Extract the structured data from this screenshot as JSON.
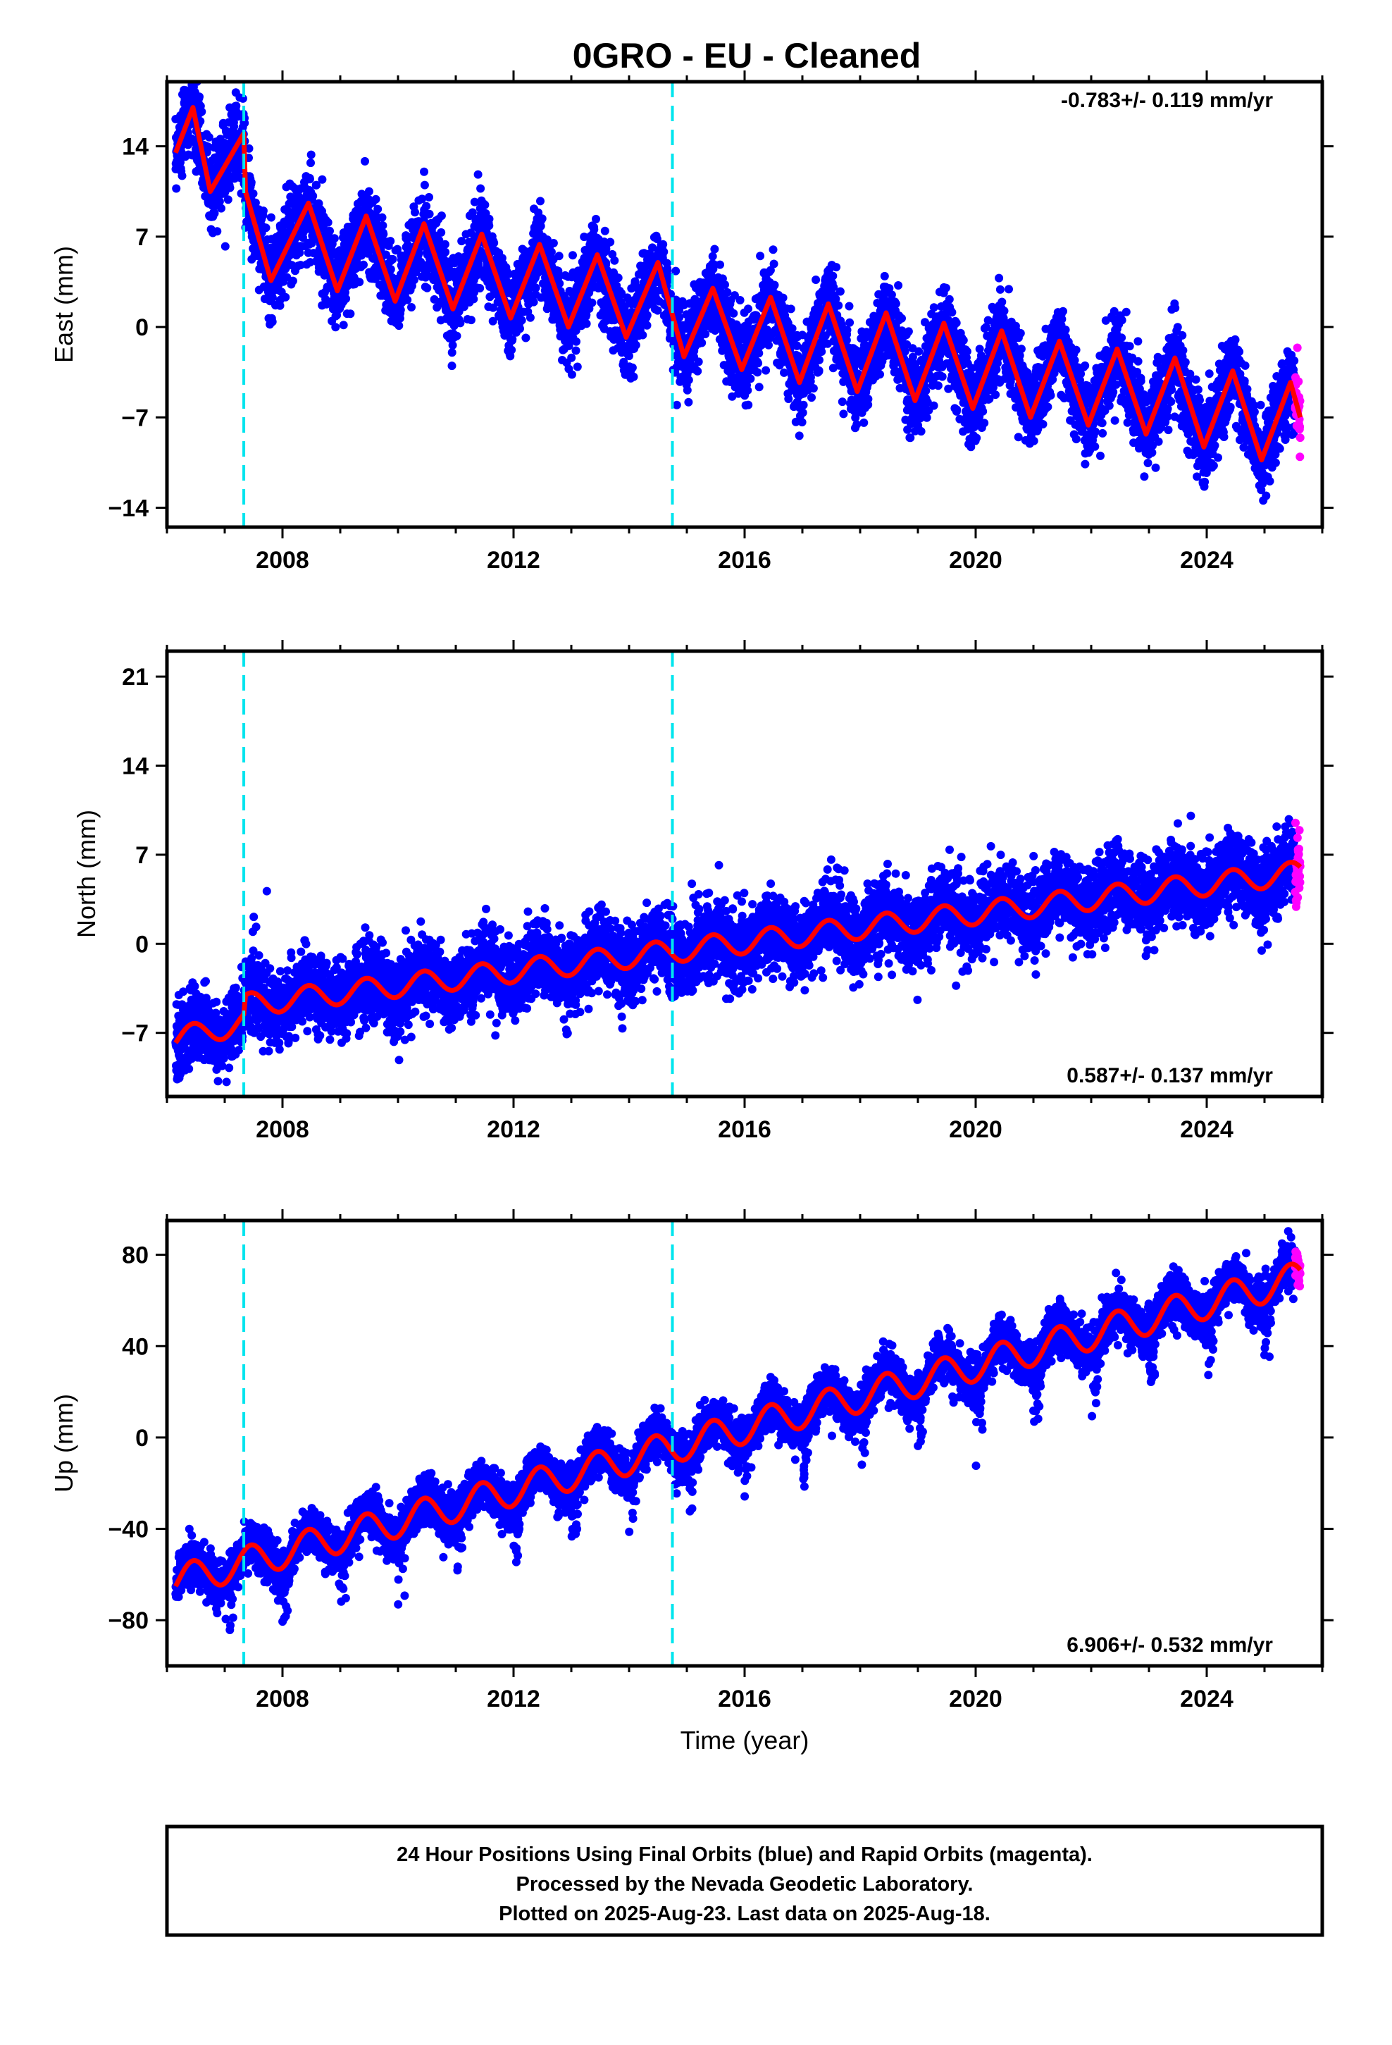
{
  "chart_data": {
    "title": "0GRO  - EU - Cleaned",
    "type": "scatter",
    "xlabel": "Time (year)",
    "xlim": [
      2006.0,
      2026.0
    ],
    "xticks": [
      2008,
      2012,
      2016,
      2020,
      2024
    ],
    "equipment_changes": [
      2007.33,
      2014.75
    ],
    "colors": {
      "final_orbits": "#0000ff",
      "rapid_orbits": "#ff00ff",
      "model_fit": "#ff0000",
      "offset_lines": "#00e5ee"
    },
    "data_start": 2006.15,
    "last_data": 2025.62,
    "rapid_start": 2025.53,
    "panels": [
      {
        "ylabel": "East (mm)",
        "ylim": [
          -15.5,
          19.0
        ],
        "yticks": [
          14,
          7,
          0,
          -7,
          -14
        ],
        "rate_label": "-0.783+/- 0.119 mm/yr",
        "rate_position": "top-right",
        "rate": -0.783,
        "rate_sigma": 0.119,
        "seasonal_amplitude": 3.2,
        "scatter_sigma": 1.6,
        "fit_nodes": [
          [
            2006.15,
            13.5
          ],
          [
            2006.45,
            17.0
          ],
          [
            2006.75,
            10.5
          ],
          [
            2007.33,
            15.0
          ],
          [
            2007.36,
            10.5
          ],
          [
            2007.8,
            3.6
          ],
          [
            2008.45,
            9.6
          ],
          [
            2008.95,
            2.8
          ],
          [
            2009.45,
            8.6
          ],
          [
            2009.95,
            2.0
          ],
          [
            2010.45,
            8.0
          ],
          [
            2010.95,
            1.4
          ],
          [
            2011.45,
            7.2
          ],
          [
            2011.95,
            0.7
          ],
          [
            2012.45,
            6.4
          ],
          [
            2012.95,
            0.0
          ],
          [
            2013.45,
            5.6
          ],
          [
            2013.95,
            -0.8
          ],
          [
            2014.5,
            5.0
          ],
          [
            2014.95,
            -2.3
          ],
          [
            2015.45,
            3.0
          ],
          [
            2015.95,
            -3.3
          ],
          [
            2016.45,
            2.3
          ],
          [
            2016.95,
            -4.3
          ],
          [
            2017.45,
            1.8
          ],
          [
            2017.95,
            -5.0
          ],
          [
            2018.45,
            1.1
          ],
          [
            2018.95,
            -5.7
          ],
          [
            2019.45,
            0.3
          ],
          [
            2019.95,
            -6.3
          ],
          [
            2020.45,
            -0.3
          ],
          [
            2020.95,
            -7.0
          ],
          [
            2021.45,
            -1.1
          ],
          [
            2021.95,
            -7.6
          ],
          [
            2022.45,
            -1.7
          ],
          [
            2022.95,
            -8.3
          ],
          [
            2023.45,
            -2.4
          ],
          [
            2023.95,
            -9.3
          ],
          [
            2024.45,
            -3.4
          ],
          [
            2024.95,
            -10.3
          ],
          [
            2025.45,
            -4.3
          ],
          [
            2025.62,
            -7.0
          ]
        ]
      },
      {
        "ylabel": "North (mm)",
        "ylim": [
          -12.0,
          23.0
        ],
        "yticks": [
          21,
          14,
          7,
          0,
          -7
        ],
        "rate_label": "0.587+/- 0.137 mm/yr",
        "rate_position": "bottom-right",
        "rate": 0.587,
        "rate_sigma": 0.137,
        "seasonal_amplitude": 0.9,
        "scatter_sigma": 1.5,
        "fit_nodes": [
          [
            2006.15,
            -7.5
          ],
          [
            2007.33,
            -6.2
          ],
          [
            2007.36,
            -4.8
          ],
          [
            2025.62,
            5.6
          ]
        ]
      },
      {
        "ylabel": "Up (mm)",
        "ylim": [
          -100,
          95
        ],
        "yticks": [
          80,
          40,
          0,
          -40,
          -80
        ],
        "rate_label": "6.906+/- 0.532 mm/yr",
        "rate_position": "bottom-right",
        "rate": 6.906,
        "rate_sigma": 0.532,
        "seasonal_amplitude": 7.0,
        "scatter_sigma": 5.0,
        "fit_nodes": [
          [
            2006.15,
            -63.0
          ],
          [
            2025.62,
            70.0
          ]
        ]
      }
    ]
  },
  "footer": {
    "line1": "24 Hour Positions Using Final Orbits (blue) and Rapid Orbits (magenta).",
    "line2": "Processed by the Nevada Geodetic Laboratory.",
    "line3": "Plotted on 2025-Aug-23. Last data on 2025-Aug-18."
  }
}
